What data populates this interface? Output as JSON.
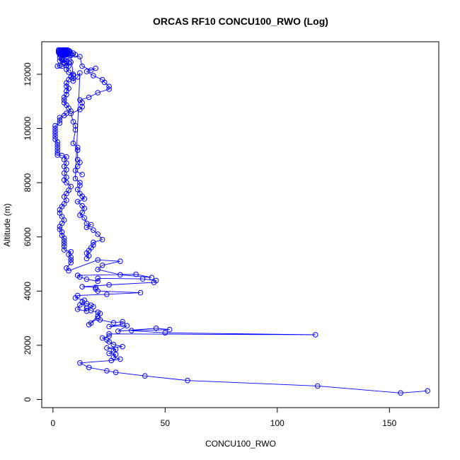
{
  "chart_data": {
    "type": "scatter",
    "title": "ORCAS RF10 CONCU100_RWO (Log)",
    "xlabel": "CONCU100_RWO",
    "ylabel": "Altitude (m)",
    "xlim": [
      -5,
      172
    ],
    "ylim": [
      -300,
      13200
    ],
    "x_ticks": [
      0,
      50,
      100,
      150
    ],
    "y_ticks": [
      0,
      2000,
      4000,
      6000,
      8000,
      10000,
      12000
    ],
    "grid": false,
    "legend": "none",
    "color": "#0000ff",
    "series": [
      {
        "points": [
          [
            167,
            320
          ],
          [
            155,
            240
          ],
          [
            118,
            500
          ],
          [
            60,
            700
          ],
          [
            41,
            870
          ],
          [
            28,
            1000
          ],
          [
            24,
            1060
          ],
          [
            16,
            1180
          ],
          [
            12,
            1350
          ],
          [
            26,
            1440
          ],
          [
            30,
            1490
          ],
          [
            27,
            1560
          ],
          [
            28,
            1660
          ],
          [
            25,
            1700
          ],
          [
            27,
            1800
          ],
          [
            28,
            1850
          ],
          [
            24,
            1900
          ],
          [
            31,
            1950
          ],
          [
            27,
            2030
          ],
          [
            25,
            2130
          ],
          [
            24,
            2200
          ],
          [
            22,
            2270
          ],
          [
            25,
            2340
          ],
          [
            25,
            2420
          ],
          [
            117,
            2390
          ],
          [
            50,
            2460
          ],
          [
            35,
            2540
          ],
          [
            52,
            2580
          ],
          [
            46,
            2630
          ],
          [
            29,
            2520
          ],
          [
            33,
            2720
          ],
          [
            25,
            2690
          ],
          [
            31,
            2780
          ],
          [
            31,
            2870
          ],
          [
            27,
            2830
          ],
          [
            21,
            2940
          ],
          [
            20,
            3000
          ],
          [
            17,
            2820
          ],
          [
            16,
            2760
          ],
          [
            20,
            3080
          ],
          [
            21,
            3170
          ],
          [
            20,
            3220
          ],
          [
            17,
            3280
          ],
          [
            15,
            3360
          ],
          [
            18,
            3420
          ],
          [
            17,
            3480
          ],
          [
            15,
            3540
          ],
          [
            12,
            3490
          ],
          [
            11,
            3330
          ],
          [
            15,
            3260
          ],
          [
            13,
            3600
          ],
          [
            14,
            3660
          ],
          [
            10,
            3750
          ],
          [
            11,
            3840
          ],
          [
            24,
            3880
          ],
          [
            39,
            3940
          ],
          [
            20,
            4000
          ],
          [
            19,
            4080
          ],
          [
            19,
            4140
          ],
          [
            13,
            4160
          ],
          [
            25,
            4230
          ],
          [
            45,
            4320
          ],
          [
            46,
            4390
          ],
          [
            40,
            4450
          ],
          [
            20,
            4470
          ],
          [
            20,
            4360
          ],
          [
            15,
            4440
          ],
          [
            12,
            4520
          ],
          [
            11,
            4580
          ],
          [
            37,
            4620
          ],
          [
            44,
            4500
          ],
          [
            30,
            4600
          ],
          [
            20,
            4800
          ],
          [
            22,
            4950
          ],
          [
            30,
            5100
          ],
          [
            20,
            5150
          ],
          [
            7,
            4750
          ],
          [
            6,
            4850
          ],
          [
            8,
            5050
          ],
          [
            8,
            5150
          ],
          [
            8,
            5250
          ],
          [
            7,
            5350
          ],
          [
            8,
            5450
          ],
          [
            5,
            5520
          ],
          [
            5,
            5650
          ],
          [
            5,
            5750
          ],
          [
            5,
            5850
          ],
          [
            5,
            5950
          ],
          [
            4,
            6050
          ],
          [
            4,
            6180
          ],
          [
            3,
            6280
          ],
          [
            3,
            6380
          ],
          [
            4,
            6500
          ],
          [
            5,
            6620
          ],
          [
            4,
            6750
          ],
          [
            3,
            6880
          ],
          [
            3,
            7000
          ],
          [
            4,
            7120
          ],
          [
            5,
            7220
          ],
          [
            6,
            7350
          ],
          [
            5,
            7480
          ],
          [
            6,
            7600
          ],
          [
            7,
            7720
          ],
          [
            8,
            7860
          ],
          [
            6,
            8000
          ],
          [
            5,
            8100
          ],
          [
            6,
            8200
          ],
          [
            5,
            8350
          ],
          [
            6,
            8480
          ],
          [
            5,
            8600
          ],
          [
            6,
            8720
          ],
          [
            5,
            8850
          ],
          [
            6,
            8950
          ],
          [
            4,
            9000
          ],
          [
            2,
            9020
          ],
          [
            2,
            9100
          ],
          [
            2,
            9200
          ],
          [
            2,
            9300
          ],
          [
            2,
            9400
          ],
          [
            2,
            9500
          ],
          [
            1,
            9600
          ],
          [
            1,
            9700
          ],
          [
            1,
            9800
          ],
          [
            1,
            9900
          ],
          [
            1,
            10000
          ],
          [
            1,
            10100
          ],
          [
            3,
            10200
          ],
          [
            3,
            10300
          ],
          [
            3,
            10400
          ],
          [
            5,
            10480
          ],
          [
            6,
            10560
          ],
          [
            8,
            10640
          ],
          [
            7,
            10750
          ],
          [
            6,
            10860
          ],
          [
            5,
            10950
          ],
          [
            5,
            11050
          ],
          [
            5,
            11150
          ],
          [
            6,
            11250
          ],
          [
            6,
            11380
          ],
          [
            7,
            11480
          ],
          [
            6,
            11560
          ],
          [
            6,
            11680
          ],
          [
            7,
            11800
          ],
          [
            8,
            11900
          ],
          [
            9,
            12000
          ],
          [
            7,
            12080
          ],
          [
            6,
            12180
          ],
          [
            7,
            12300
          ],
          [
            5,
            12420
          ],
          [
            4,
            12530
          ],
          [
            3,
            12620
          ],
          [
            4,
            12700
          ],
          [
            3,
            12760
          ],
          [
            3,
            12800
          ],
          [
            4,
            12850
          ],
          [
            5,
            12830
          ],
          [
            6,
            12800
          ],
          [
            5,
            12780
          ],
          [
            7,
            12760
          ],
          [
            8,
            12700
          ],
          [
            6,
            12650
          ]
        ]
      },
      {
        "points": [
          [
            13,
            8300
          ],
          [
            10,
            8450
          ],
          [
            11,
            8600
          ],
          [
            12,
            8750
          ],
          [
            11,
            8850
          ],
          [
            11,
            9200
          ],
          [
            11,
            9300
          ],
          [
            9,
            9450
          ],
          [
            10,
            9950
          ],
          [
            10,
            10100
          ],
          [
            9,
            10250
          ],
          [
            8,
            10550
          ],
          [
            12,
            10700
          ],
          [
            13,
            10800
          ],
          [
            13,
            10950
          ],
          [
            12,
            11050
          ],
          [
            16,
            11150
          ],
          [
            20,
            11320
          ],
          [
            25,
            11450
          ],
          [
            25,
            11550
          ],
          [
            23,
            11700
          ],
          [
            22,
            11800
          ],
          [
            18,
            11950
          ],
          [
            15,
            12100
          ],
          [
            19,
            12220
          ],
          [
            17,
            12150
          ],
          [
            13,
            12300
          ],
          [
            12,
            12650
          ],
          [
            8,
            12700
          ],
          [
            9,
            11950
          ],
          [
            9,
            11850
          ],
          [
            9,
            11750
          ],
          [
            11,
            11900
          ],
          [
            12,
            12050
          ],
          [
            10,
            8150
          ],
          [
            12,
            8000
          ],
          [
            12,
            7900
          ],
          [
            11,
            7750
          ],
          [
            12,
            7600
          ],
          [
            13,
            7500
          ],
          [
            14,
            7400
          ],
          [
            11,
            7300
          ],
          [
            13,
            7150
          ],
          [
            14,
            7050
          ],
          [
            13,
            6900
          ],
          [
            12,
            6800
          ],
          [
            14,
            6700
          ],
          [
            15,
            6500
          ],
          [
            17,
            6450
          ],
          [
            15,
            6350
          ],
          [
            18,
            6250
          ],
          [
            20,
            6100
          ],
          [
            22,
            5900
          ],
          [
            18,
            5800
          ],
          [
            18,
            5700
          ],
          [
            17,
            5600
          ],
          [
            16,
            5500
          ],
          [
            15,
            5400
          ],
          [
            16,
            5300
          ],
          [
            15,
            5200
          ]
        ]
      },
      {
        "points": [
          [
            2.5,
            12900
          ],
          [
            3.5,
            12900
          ],
          [
            4.5,
            12900
          ],
          [
            5.5,
            12900
          ],
          [
            6.5,
            12900
          ],
          [
            2.5,
            12850
          ],
          [
            3.5,
            12850
          ],
          [
            4.5,
            12850
          ],
          [
            5.5,
            12850
          ],
          [
            6.5,
            12850
          ],
          [
            7.5,
            12850
          ],
          [
            2.5,
            12800
          ],
          [
            3.5,
            12800
          ],
          [
            4.5,
            12800
          ],
          [
            5.5,
            12800
          ],
          [
            6.5,
            12800
          ],
          [
            7.5,
            12800
          ],
          [
            3,
            12760
          ],
          [
            4,
            12760
          ],
          [
            5,
            12760
          ],
          [
            6,
            12760
          ],
          [
            7,
            12760
          ],
          [
            8,
            12760
          ],
          [
            3,
            12720
          ],
          [
            4,
            12720
          ],
          [
            5,
            12720
          ],
          [
            6,
            12720
          ],
          [
            2.8,
            12880
          ],
          [
            4.2,
            12880
          ],
          [
            5.8,
            12880
          ],
          [
            7,
            12880
          ],
          [
            3.2,
            12820
          ],
          [
            4.8,
            12820
          ],
          [
            6.2,
            12820
          ],
          [
            9,
            12780
          ],
          [
            10,
            12720
          ],
          [
            2,
            12300
          ],
          [
            3,
            12320
          ],
          [
            4,
            12300
          ],
          [
            6,
            12320
          ],
          [
            7,
            12420
          ],
          [
            3,
            12500
          ],
          [
            5,
            12550
          ],
          [
            4,
            12600
          ],
          [
            6,
            12480
          ],
          [
            8,
            12450
          ]
        ]
      }
    ]
  }
}
